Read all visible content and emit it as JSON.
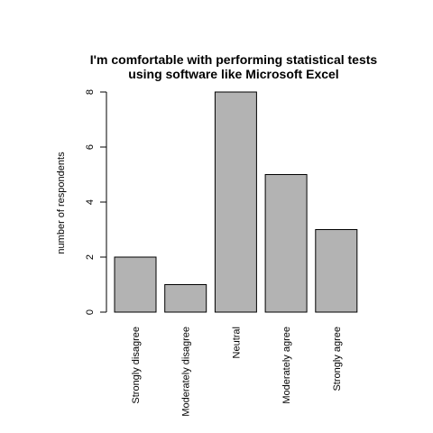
{
  "chart_data": {
    "type": "bar",
    "title_lines": [
      "I'm comfortable with performing statistical tests",
      "using software like Microsoft Excel"
    ],
    "ylabel": "number of respondents",
    "xlabel": "",
    "categories": [
      "Strongly disagree",
      "Moderately disagree",
      "Neutral",
      "Moderately agree",
      "Strongly agree"
    ],
    "values": [
      2,
      1,
      8,
      5,
      3
    ],
    "ylim": [
      0,
      8
    ],
    "yticks": [
      0,
      2,
      4,
      6,
      8
    ],
    "grid": false,
    "legend": "none",
    "colors": {
      "bar_fill": "#b3b3b3",
      "bar_stroke": "#000000",
      "axis": "#000000"
    }
  }
}
